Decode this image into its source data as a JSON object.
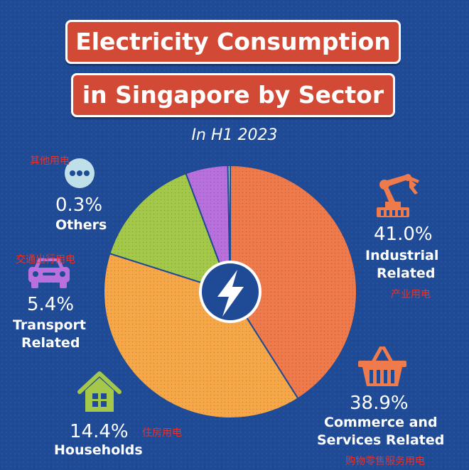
{
  "title_line1": "Electricity Consumption",
  "title_line2": "in Singapore by Sector",
  "subtitle": "In H1 2023",
  "chart_data": {
    "type": "pie",
    "title": "Electricity Consumption in Singapore by Sector",
    "subtitle": "In H1 2023",
    "categories": [
      "Industrial Related",
      "Commerce and Services Related",
      "Households",
      "Transport Related",
      "Others"
    ],
    "values": [
      41.0,
      38.9,
      14.4,
      5.4,
      0.3
    ],
    "unit": "%",
    "colors": [
      "#ef7a4c",
      "#f6a748",
      "#a4c84a",
      "#b870dc",
      "#bfe0e8"
    ]
  },
  "labels": {
    "industrial": {
      "pct": "41.0%",
      "line1": "Industrial",
      "line2": "Related",
      "cn": "产业用电"
    },
    "commerce": {
      "pct": "38.9%",
      "line1": "Commerce and",
      "line2": "Services Related",
      "cn": "购物零售服务用电"
    },
    "households": {
      "pct": "14.4%",
      "line1": "Households",
      "cn": "住房用电"
    },
    "transport": {
      "pct": "5.4%",
      "line1": "Transport",
      "line2": "Related",
      "cn": "交通出行用电"
    },
    "others": {
      "pct": "0.3%",
      "line1": "Others",
      "cn": "其他用电"
    }
  },
  "icons": {
    "industrial": "robot-arm-icon",
    "commerce": "shopping-basket-icon",
    "households": "house-icon",
    "transport": "car-icon",
    "others": "more-dots-icon",
    "center": "lightning-bolt-icon"
  }
}
